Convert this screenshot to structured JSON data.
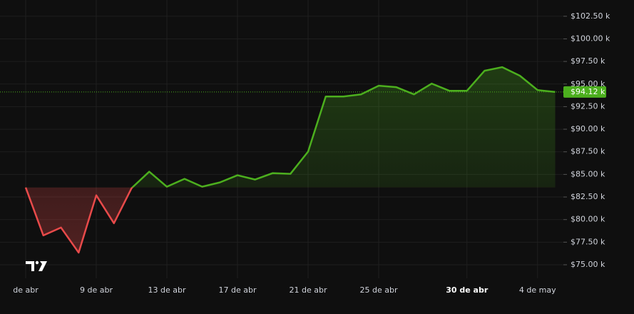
{
  "chart_data": {
    "type": "baseline",
    "categories": [
      "de abr",
      null,
      null,
      null,
      "9 de abr",
      null,
      null,
      null,
      "13 de abr",
      null,
      null,
      null,
      "17 de abr",
      null,
      null,
      null,
      "21 de abr",
      null,
      null,
      null,
      "25 de abr",
      null,
      null,
      null,
      null,
      "30 de abr",
      null,
      null,
      null,
      "4 de may",
      null
    ],
    "series": [
      {
        "color": "#4caf1e",
        "down_color": "#e84a4a",
        "values": [
          83558,
          78249,
          79120,
          76347,
          82686,
          79596,
          83479,
          85301,
          83637,
          84509,
          83637,
          84113,
          84905,
          84430,
          85143,
          85063,
          87520,
          93621,
          93621,
          93859,
          94810,
          94651,
          93859,
          95048,
          94255,
          94255,
          96474,
          96870,
          95919,
          94334,
          94120
        ]
      }
    ],
    "ylim": [
      73500,
      104300
    ],
    "yticks": [
      {
        "value": 75000,
        "label": "$75.00 k"
      },
      {
        "value": 77500,
        "label": "$77.50 k"
      },
      {
        "value": 80000,
        "label": "$80.00 k"
      },
      {
        "value": 82500,
        "label": "$82.50 k"
      },
      {
        "value": 85000,
        "label": "$85.00 k"
      },
      {
        "value": 87500,
        "label": "$87.50 k"
      },
      {
        "value": 90000,
        "label": "$90.00 k"
      },
      {
        "value": 92500,
        "label": "$92.50 k"
      },
      {
        "value": 95000,
        "label": "$95.00 k"
      },
      {
        "value": 97500,
        "label": "$97.50 k"
      },
      {
        "value": 100000,
        "label": "$100.00 k"
      },
      {
        "value": 102500,
        "label": "$102.50 k"
      }
    ],
    "price_line": {
      "value": 94120,
      "label": "$94.12 k"
    },
    "grid": true
  }
}
